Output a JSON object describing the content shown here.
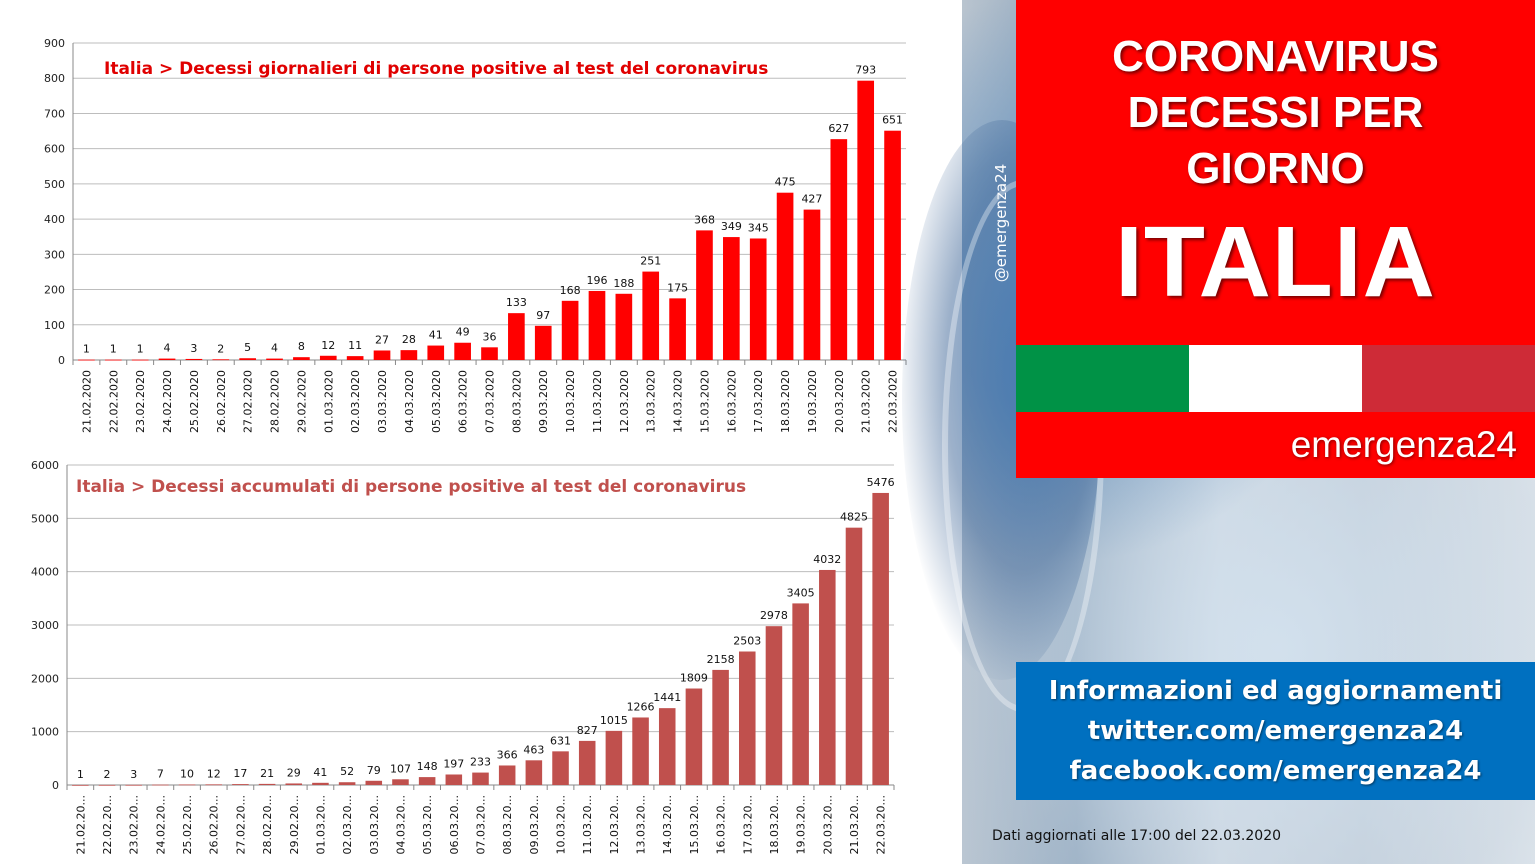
{
  "chart_data": [
    {
      "type": "bar",
      "title": "Italia > Decessi giornalieri di persone positive al test del coronavirus",
      "categories": [
        "21.02.2020",
        "22.02.2020",
        "23.02.2020",
        "24.02.2020",
        "25.02.2020",
        "26.02.2020",
        "27.02.2020",
        "28.02.2020",
        "29.02.2020",
        "01.03.2020",
        "02.03.2020",
        "03.03.2020",
        "04.03.2020",
        "05.03.2020",
        "06.03.2020",
        "07.03.2020",
        "08.03.2020",
        "09.03.2020",
        "10.03.2020",
        "11.03.2020",
        "12.03.2020",
        "13.03.2020",
        "14.03.2020",
        "15.03.2020",
        "16.03.2020",
        "17.03.2020",
        "18.03.2020",
        "19.03.2020",
        "20.03.2020",
        "21.03.2020",
        "22.03.2020"
      ],
      "values": [
        1,
        1,
        1,
        4,
        3,
        2,
        5,
        4,
        8,
        12,
        11,
        27,
        28,
        41,
        49,
        36,
        133,
        97,
        168,
        196,
        188,
        251,
        175,
        368,
        349,
        345,
        475,
        427,
        627,
        793,
        651
      ],
      "ylim": [
        0,
        900
      ],
      "yticks": [
        "0",
        "100",
        "200",
        "300",
        "400",
        "500",
        "600",
        "700",
        "800",
        "900"
      ],
      "grid": true,
      "bar_color": "#ff0000",
      "title_color": "#e00000"
    },
    {
      "type": "bar",
      "title": "Italia > Decessi accumulati di persone positive al test del coronavirus",
      "categories": [
        "21.02.20...",
        "22.02.20...",
        "23.02.20...",
        "24.02.20...",
        "25.02.20...",
        "26.02.20...",
        "27.02.20...",
        "28.02.20...",
        "29.02.20...",
        "01.03.20...",
        "02.03.20...",
        "03.03.20...",
        "04.03.20...",
        "05.03.20...",
        "06.03.20...",
        "07.03.20...",
        "08.03.20...",
        "09.03.20...",
        "10.03.20...",
        "11.03.20...",
        "12.03.20...",
        "13.03.20...",
        "14.03.20...",
        "15.03.20...",
        "16.03.20...",
        "17.03.20...",
        "18.03.20...",
        "19.03.20...",
        "20.03.20...",
        "21.03.20...",
        "22.03.20..."
      ],
      "values": [
        1,
        2,
        3,
        7,
        10,
        12,
        17,
        21,
        29,
        41,
        52,
        79,
        107,
        148,
        197,
        233,
        366,
        463,
        631,
        827,
        1015,
        1266,
        1441,
        1809,
        2158,
        2503,
        2978,
        3405,
        4032,
        4825,
        5476
      ],
      "ylim": [
        0,
        6000
      ],
      "yticks": [
        "0",
        "1000",
        "2000",
        "3000",
        "4000",
        "5000",
        "6000"
      ],
      "grid": true,
      "bar_color": "#c0504d",
      "title_color": "#c0504d"
    }
  ],
  "panel": {
    "title_lines": [
      "CORONAVIRUS",
      "DECESSI PER",
      "GIORNO"
    ],
    "country": "ITALIA",
    "brand": "emergenza24",
    "handle": "@emergenza24",
    "info_lines": [
      "Informazioni ed aggiornamenti",
      "twitter.com/emergenza24",
      "facebook.com/emergenza24"
    ],
    "updated": "Dati aggiornati alle 17:00 del 22.03.2020",
    "colors": {
      "red": "#ff0000",
      "blue": "#0070c0",
      "flag_green": "#009246",
      "flag_white": "#ffffff",
      "flag_red": "#ce2b37"
    }
  }
}
